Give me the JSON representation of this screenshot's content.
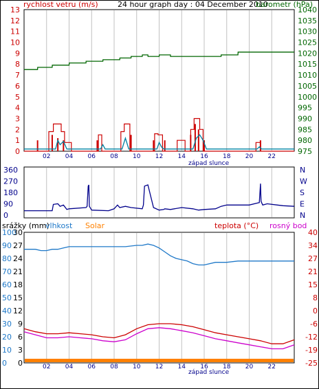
{
  "colors": {
    "wind": "#cc0000",
    "pressure": "#006600",
    "gust": "#cc0000",
    "wind_avg": "#0080a0",
    "direction": "#00008b",
    "humidity": "#1e78c8",
    "solar": "#ff8000",
    "temperature": "#cc0000",
    "dewpoint": "#cc00cc",
    "grid": "#c0c0c0",
    "axis": "#000000"
  },
  "chart_data": [
    {
      "type": "line",
      "title": "24 hour graph day : 04 December 2010",
      "left_label": "rychlost vetru (m/s)",
      "right_label": "barometr (hPa)",
      "footer_label": "západ slunce",
      "x_ticks": [
        "02",
        "04",
        "06",
        "08",
        "10",
        "12",
        "14",
        "16",
        "18",
        "20",
        "22"
      ],
      "xlim": [
        0,
        24
      ],
      "left_ylim": [
        0,
        13
      ],
      "left_ticks": [
        0,
        1,
        2,
        3,
        4,
        5,
        6,
        7,
        8,
        9,
        10,
        11,
        12,
        13
      ],
      "right_ylim": [
        975,
        1040
      ],
      "right_ticks": [
        975,
        980,
        985,
        990,
        995,
        1000,
        1005,
        1010,
        1015,
        1020,
        1025,
        1030,
        1035,
        1040
      ],
      "grid": true,
      "series": [
        {
          "name": "barometr (hPa)",
          "axis": "right",
          "color_key": "pressure",
          "x": [
            0,
            1.2,
            1.21,
            2.5,
            2.51,
            4.0,
            4.01,
            5.5,
            5.51,
            7.0,
            7.01,
            8.5,
            8.51,
            9.5,
            9.51,
            10.5,
            10.51,
            11.0,
            11.01,
            12.0,
            12.01,
            13.0,
            13.01,
            17.5,
            17.51,
            19.0,
            19.01,
            24
          ],
          "y": [
            1012.5,
            1012.5,
            1013.5,
            1013.5,
            1014.5,
            1014.5,
            1015.5,
            1015.5,
            1016.3,
            1016.3,
            1017.0,
            1017.0,
            1017.8,
            1017.8,
            1018.5,
            1018.5,
            1019.2,
            1019.2,
            1018.5,
            1018.5,
            1019.2,
            1019.2,
            1018.5,
            1018.5,
            1019.2,
            1019.2,
            1020.5,
            1020.5
          ]
        },
        {
          "name": "gust",
          "axis": "left",
          "color_key": "gust",
          "x": [
            0,
            2.2,
            2.2,
            2.6,
            2.6,
            3.3,
            3.3,
            3.6,
            3.6,
            4.2,
            4.2,
            6.6,
            6.6,
            6.9,
            6.9,
            8.6,
            8.6,
            8.9,
            8.9,
            9.4,
            9.4,
            11.6,
            11.6,
            11.9,
            11.9,
            12.3,
            12.3,
            13.6,
            13.6,
            14.3,
            14.3,
            14.8,
            14.8,
            15.1,
            15.1,
            15.6,
            15.6,
            15.9,
            15.9,
            16.3,
            16.3,
            20.6,
            20.6,
            21.0,
            21.0,
            24
          ],
          "y": [
            0,
            0,
            1.8,
            1.8,
            2.5,
            2.5,
            1.8,
            1.8,
            0.8,
            0.8,
            0,
            0,
            1.5,
            1.5,
            0,
            0,
            1.8,
            1.8,
            2.5,
            2.5,
            0,
            0,
            1.6,
            1.6,
            1.5,
            1.5,
            0,
            0,
            1.0,
            1.0,
            0,
            0,
            2.0,
            2.0,
            3.0,
            3.0,
            2.0,
            2.0,
            0,
            0,
            0,
            0,
            0.8,
            0.8,
            0,
            0
          ]
        },
        {
          "name": "wind average",
          "axis": "left",
          "color_key": "wind_avg",
          "x": [
            0,
            2.8,
            3.0,
            3.2,
            3.5,
            3.8,
            6.8,
            7.0,
            7.2,
            8.7,
            9.0,
            9.3,
            11.8,
            12.0,
            12.2,
            12.4,
            15.0,
            15.3,
            15.6,
            15.9,
            16.2,
            20.7,
            20.9,
            21.1,
            24
          ],
          "y": [
            0.2,
            0.2,
            1.0,
            0.6,
            0.9,
            0.2,
            0.2,
            0.6,
            0.2,
            0.2,
            1.2,
            0.2,
            0.2,
            0.8,
            0.4,
            0.2,
            0.2,
            1.2,
            1.5,
            1.0,
            0.2,
            0.2,
            0.4,
            0.2,
            0.2
          ]
        }
      ],
      "bars": {
        "name": "wind speed",
        "axis": "left",
        "color_key": "wind",
        "x": [
          1.2,
          2.5,
          3.0,
          3.5,
          6.5,
          9.5,
          11.5,
          12.5,
          14.8,
          15.2,
          15.5,
          16.0,
          21.0
        ],
        "y": [
          1.0,
          1.5,
          1.2,
          1.0,
          1.0,
          1.5,
          1.0,
          1.0,
          1.5,
          2.5,
          2.0,
          1.0,
          1.0
        ]
      }
    },
    {
      "type": "line",
      "left_ylim": [
        0,
        360
      ],
      "left_ticks": [
        0,
        90,
        180,
        270,
        360
      ],
      "right_ticks": [
        "N",
        "E",
        "S",
        "W",
        "N"
      ],
      "xlim": [
        0,
        24
      ],
      "grid": true,
      "series": [
        {
          "name": "wind direction",
          "axis": "left",
          "color_key": "direction",
          "x": [
            0,
            2.5,
            2.6,
            3.0,
            3.2,
            3.5,
            3.8,
            4.0,
            5.5,
            5.6,
            5.7,
            5.75,
            5.8,
            6.0,
            7.5,
            8.0,
            8.3,
            8.5,
            9.0,
            9.5,
            10.5,
            10.6,
            10.7,
            11.0,
            11.5,
            12.0,
            12.4,
            12.5,
            13.0,
            14.0,
            15.0,
            15.5,
            16.0,
            17.0,
            17.5,
            18.0,
            20.0,
            20.9,
            21.0,
            21.05,
            21.2,
            21.6,
            22.5,
            23.0,
            24
          ],
          "y": [
            35,
            35,
            85,
            90,
            70,
            80,
            45,
            50,
            60,
            70,
            230,
            240,
            70,
            40,
            35,
            50,
            80,
            60,
            70,
            60,
            50,
            80,
            230,
            240,
            60,
            40,
            45,
            50,
            45,
            60,
            50,
            40,
            45,
            50,
            70,
            80,
            80,
            100,
            250,
            110,
            80,
            90,
            80,
            75,
            70
          ]
        }
      ]
    },
    {
      "type": "line",
      "left_label": "srážky (mm)",
      "humidity_label": "vlhkost",
      "solar_label": "Solar",
      "temp_label": "teplota (°C)",
      "dew_label": "rosný bod",
      "footer_label": "západ slunce",
      "x_ticks": [
        "02",
        "04",
        "06",
        "08",
        "10",
        "12",
        "14",
        "16",
        "18",
        "20",
        "22"
      ],
      "xlim": [
        0,
        24
      ],
      "left_ylim": [
        0,
        100
      ],
      "left_ticks": [
        0,
        10,
        20,
        30,
        40,
        50,
        60,
        70,
        80,
        90,
        100
      ],
      "rain_ticks": [
        "0",
        "3",
        "6",
        "9",
        "12",
        "15",
        "18",
        "21",
        "24",
        "27",
        "30"
      ],
      "right_ylim": [
        -25,
        40
      ],
      "right_ticks": [
        -25,
        -19,
        -12,
        -6,
        0,
        8,
        15,
        21,
        27,
        34,
        40
      ],
      "grid": true,
      "series": [
        {
          "name": "vlhkost",
          "axis": "left",
          "color_key": "humidity",
          "x": [
            0,
            1.0,
            1.5,
            2.0,
            2.5,
            3.0,
            3.5,
            4.0,
            5.0,
            6.0,
            7.0,
            8.0,
            9.0,
            10.0,
            10.5,
            11.0,
            11.5,
            12.0,
            12.5,
            13.0,
            13.5,
            14.0,
            14.5,
            15.0,
            15.5,
            16.0,
            17.0,
            18.0,
            19.0,
            20.0,
            21.0,
            22.0,
            23.0,
            24
          ],
          "y": [
            87,
            87,
            86,
            86,
            87,
            87,
            88,
            89,
            89,
            89,
            89,
            89,
            89,
            90,
            90,
            91,
            90,
            88,
            85,
            82,
            80,
            79,
            78,
            76,
            75,
            75,
            77,
            77,
            78,
            78,
            78,
            78,
            78,
            78
          ]
        },
        {
          "name": "teplota",
          "axis": "right",
          "color_key": "temperature",
          "x": [
            0,
            1,
            2,
            3,
            4,
            5,
            6,
            7,
            8,
            9,
            10,
            11,
            12,
            13,
            14,
            15,
            16,
            17,
            18,
            19,
            20,
            21,
            22,
            23,
            24
          ],
          "y": [
            -8,
            -9.5,
            -10.5,
            -10.5,
            -10,
            -10.5,
            -11,
            -12,
            -12.5,
            -11,
            -8,
            -6,
            -5.5,
            -5.5,
            -6,
            -7,
            -8.5,
            -10,
            -11,
            -12,
            -13,
            -14,
            -15.5,
            -15.5,
            -13.5
          ]
        },
        {
          "name": "rosný bod",
          "axis": "right",
          "color_key": "dewpoint",
          "x": [
            0,
            1,
            2,
            3,
            4,
            5,
            6,
            7,
            8,
            9,
            10,
            11,
            12,
            13,
            14,
            15,
            16,
            17,
            18,
            19,
            20,
            21,
            22,
            23,
            24
          ],
          "y": [
            -9.5,
            -11,
            -12.5,
            -12.5,
            -12,
            -12.5,
            -13,
            -14,
            -14.5,
            -13.5,
            -10.5,
            -8,
            -7.5,
            -8,
            -9,
            -10,
            -11.5,
            -13,
            -14,
            -15,
            -16,
            -17,
            -18,
            -18,
            -16
          ]
        }
      ],
      "solar": {
        "name": "Solar",
        "value": 0
      }
    }
  ]
}
